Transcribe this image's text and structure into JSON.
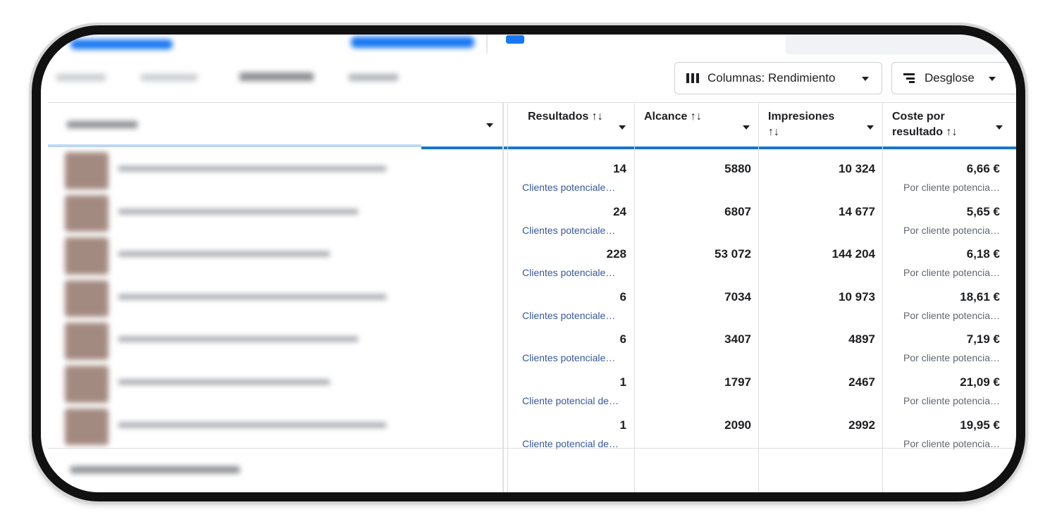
{
  "toolbar": {
    "columns_button": "Columnas: Rendimiento",
    "breakdown_button": "Desglose"
  },
  "table": {
    "headers": [
      "Resultados ↑↓",
      "Alcance ↑↓",
      "Impresiones ↑↓",
      "Coste por resultado ↑↓"
    ],
    "rows": [
      {
        "results": "14",
        "results_type": "Clientes potenciale…",
        "reach": "5880",
        "impressions": "10 324",
        "cost": "6,66 €",
        "cost_type": "Por cliente potencia…"
      },
      {
        "results": "24",
        "results_type": "Clientes potenciale…",
        "reach": "6807",
        "impressions": "14 677",
        "cost": "5,65 €",
        "cost_type": "Por cliente potencia…"
      },
      {
        "results": "228",
        "results_type": "Clientes potenciale…",
        "reach": "53 072",
        "impressions": "144 204",
        "cost": "6,18 €",
        "cost_type": "Por cliente potencia…"
      },
      {
        "results": "6",
        "results_type": "Clientes potenciale…",
        "reach": "7034",
        "impressions": "10 973",
        "cost": "18,61 €",
        "cost_type": "Por cliente potencia…"
      },
      {
        "results": "6",
        "results_type": "Clientes potenciale…",
        "reach": "3407",
        "impressions": "4897",
        "cost": "7,19 €",
        "cost_type": "Por cliente potencia…"
      },
      {
        "results": "1",
        "results_type": "Cliente potencial de…",
        "reach": "1797",
        "impressions": "2467",
        "cost": "21,09 €",
        "cost_type": "Por cliente potencia…"
      },
      {
        "results": "1",
        "results_type": "Cliente potencial de…",
        "reach": "2090",
        "impressions": "2992",
        "cost": "19,95 €",
        "cost_type": "Por cliente potencia…"
      }
    ]
  }
}
